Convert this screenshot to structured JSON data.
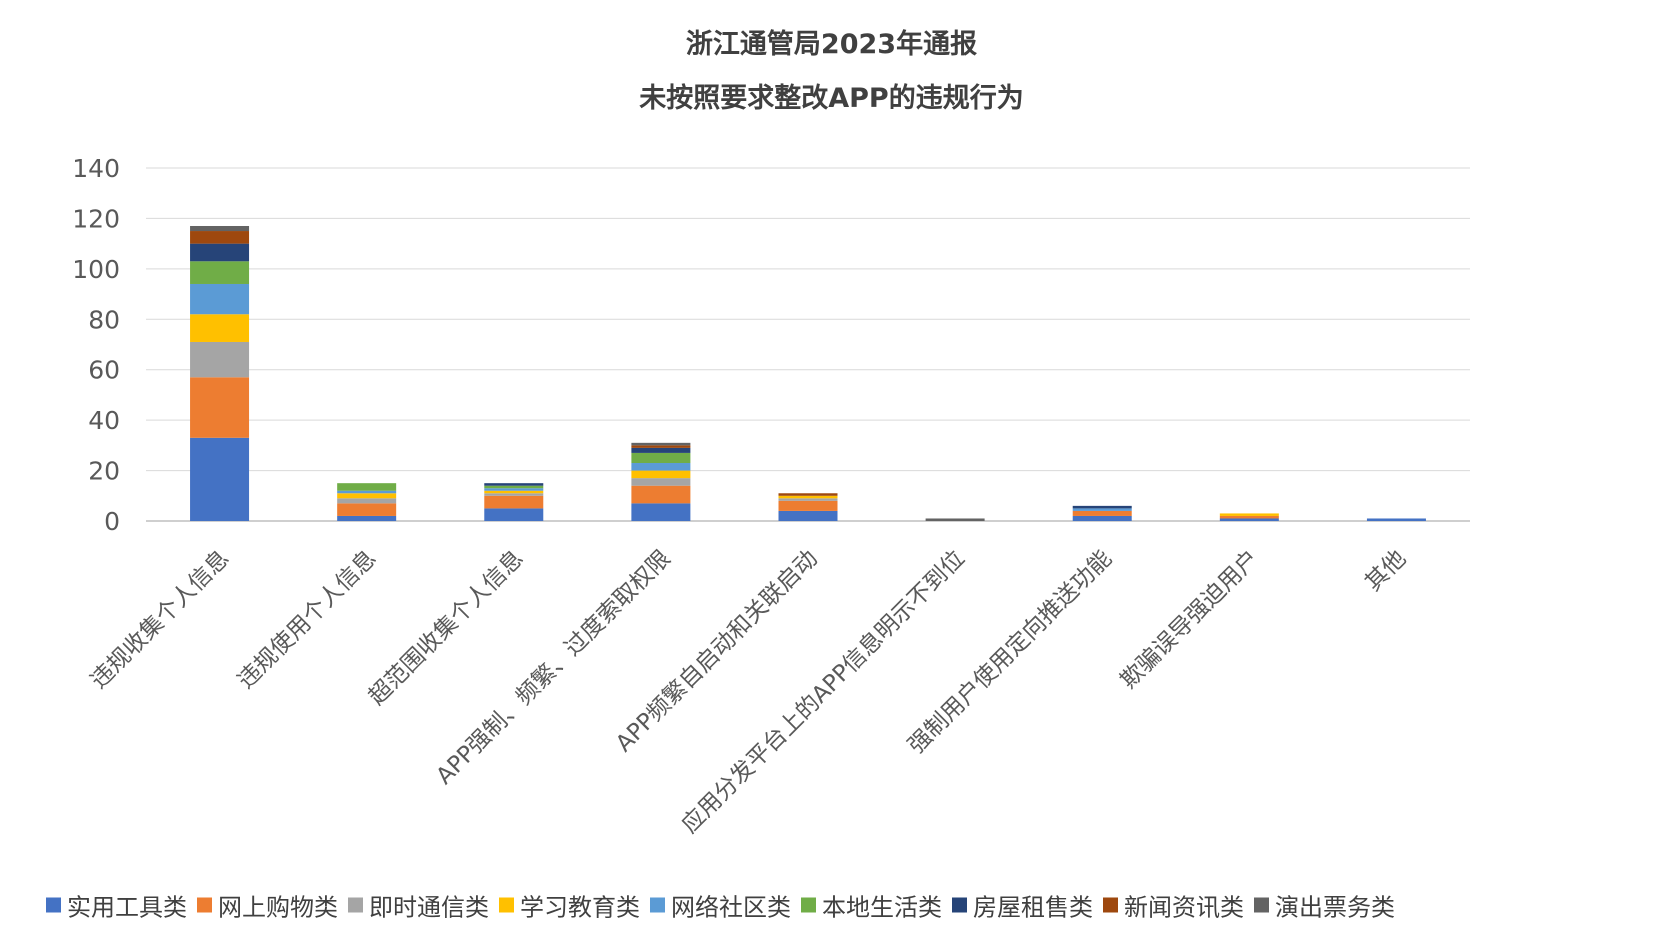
{
  "chart_data": {
    "type": "bar",
    "stacked": true,
    "title": "浙江通管局2023年通报",
    "subtitle": "未按照要求整改APP的违规行为",
    "ylim": [
      0,
      140
    ],
    "yticks": [
      0,
      20,
      40,
      60,
      80,
      100,
      120,
      140
    ],
    "grid": true,
    "legend_position": "bottom",
    "categories": [
      "违规收集个人信息",
      "违规使用个人信息",
      "超范围收集个人信息",
      "APP强制、频繁、过度索取权限",
      "APP频繁自启动和关联启动",
      "应用分发平台上的APP信息明示不到位",
      "强制用户使用定向推送功能",
      "欺骗误导强迫用户",
      "其他"
    ],
    "series": [
      {
        "name": "实用工具类",
        "color": "#4472C4",
        "values": [
          33,
          2,
          5,
          7,
          4,
          0,
          2,
          1,
          1
        ]
      },
      {
        "name": "网上购物类",
        "color": "#ED7D31",
        "values": [
          24,
          5,
          5,
          7,
          4,
          0,
          2,
          1,
          0
        ]
      },
      {
        "name": "即时通信类",
        "color": "#A5A5A5",
        "values": [
          14,
          2,
          1,
          3,
          1,
          0,
          0,
          0,
          0
        ]
      },
      {
        "name": "学习教育类",
        "color": "#FFC000",
        "values": [
          11,
          2,
          1,
          3,
          1,
          0,
          0,
          1,
          0
        ]
      },
      {
        "name": "网络社区类",
        "color": "#5B9BD5",
        "values": [
          12,
          1,
          1,
          3,
          0,
          0,
          1,
          0,
          0
        ]
      },
      {
        "name": "本地生活类",
        "color": "#70AD47",
        "values": [
          9,
          3,
          1,
          4,
          0,
          0,
          0,
          0,
          0
        ]
      },
      {
        "name": "房屋租售类",
        "color": "#264478",
        "values": [
          7,
          0,
          1,
          2,
          0,
          0,
          1,
          0,
          0
        ]
      },
      {
        "name": "新闻资讯类",
        "color": "#9E480E",
        "values": [
          5,
          0,
          0,
          1,
          1,
          0,
          0,
          0,
          0
        ]
      },
      {
        "name": "演出票务类",
        "color": "#636363",
        "values": [
          2,
          0,
          0,
          1,
          0,
          1,
          0,
          0,
          0
        ]
      }
    ]
  }
}
